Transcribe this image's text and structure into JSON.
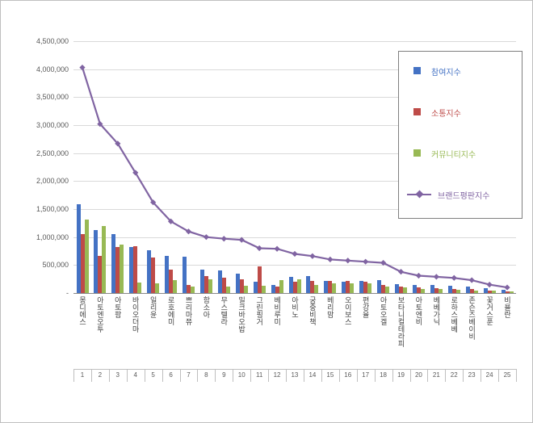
{
  "frame": {
    "background": "#ffffff",
    "border_color": "#bfbfbf"
  },
  "chart_data": {
    "type": "bar",
    "title": "",
    "xlabel": "",
    "ylabel": "",
    "grid": true,
    "legend_position": "right-top-box",
    "ylim": [
      0,
      4500000
    ],
    "yticks": [
      {
        "label": "4,500,000",
        "value": 4500000
      },
      {
        "label": "4,000,000",
        "value": 4000000
      },
      {
        "label": "3,500,000",
        "value": 3500000
      },
      {
        "label": "3,000,000",
        "value": 3000000
      },
      {
        "label": "2,500,000",
        "value": 2500000
      },
      {
        "label": "2,000,000",
        "value": 2000000
      },
      {
        "label": "1,500,000",
        "value": 1500000
      },
      {
        "label": "1,000,000",
        "value": 1000000
      },
      {
        "label": "500,000",
        "value": 500000
      },
      {
        "label": "-",
        "value": 0
      }
    ],
    "categories": [
      "몽디에스",
      "아토엔오투",
      "아토팜",
      "바이오더마",
      "일리윤",
      "로호에미",
      "쁘리마쮸",
      "함소아",
      "무스텔라",
      "밀크바오밥",
      "그린핑거",
      "베비루미",
      "아비노",
      "궁중비책",
      "베리맘",
      "오이보스",
      "편강율",
      "아토오겔",
      "보타니컬테라피",
      "아토엔비",
      "베베가닉",
      "로하스베베",
      "존슨즈베이비",
      "꽃거스푼",
      "비욜란"
    ],
    "ranks": [
      "1",
      "2",
      "3",
      "4",
      "5",
      "6",
      "7",
      "8",
      "9",
      "10",
      "11",
      "12",
      "13",
      "14",
      "15",
      "16",
      "17",
      "18",
      "19",
      "20",
      "21",
      "22",
      "23",
      "24",
      "25"
    ],
    "series": [
      {
        "name": "참여지수",
        "color": "#4472c4",
        "values": [
          1590000,
          1130000,
          1060000,
          830000,
          760000,
          660000,
          650000,
          420000,
          400000,
          340000,
          200000,
          150000,
          290000,
          310000,
          220000,
          200000,
          210000,
          230000,
          160000,
          150000,
          140000,
          130000,
          120000,
          90000,
          60000
        ]
      },
      {
        "name": "소통지수",
        "color": "#be4b48",
        "values": [
          1060000,
          660000,
          830000,
          840000,
          640000,
          420000,
          150000,
          310000,
          270000,
          240000,
          470000,
          120000,
          200000,
          210000,
          210000,
          210000,
          200000,
          140000,
          110000,
          100000,
          90000,
          80000,
          70000,
          50000,
          30000
        ]
      },
      {
        "name": "커뮤니티지수",
        "color": "#98b954",
        "values": [
          1310000,
          1200000,
          860000,
          190000,
          180000,
          230000,
          120000,
          250000,
          120000,
          130000,
          130000,
          230000,
          240000,
          150000,
          170000,
          180000,
          170000,
          120000,
          100000,
          80000,
          70000,
          60000,
          50000,
          40000,
          30000
        ]
      }
    ],
    "line_series": {
      "name": "브랜드평판지수",
      "color": "#8064a2",
      "values": [
        4030000,
        3020000,
        2670000,
        2150000,
        1620000,
        1280000,
        1100000,
        1000000,
        970000,
        950000,
        800000,
        790000,
        700000,
        660000,
        600000,
        580000,
        560000,
        540000,
        380000,
        310000,
        290000,
        270000,
        230000,
        150000,
        100000
      ]
    }
  }
}
